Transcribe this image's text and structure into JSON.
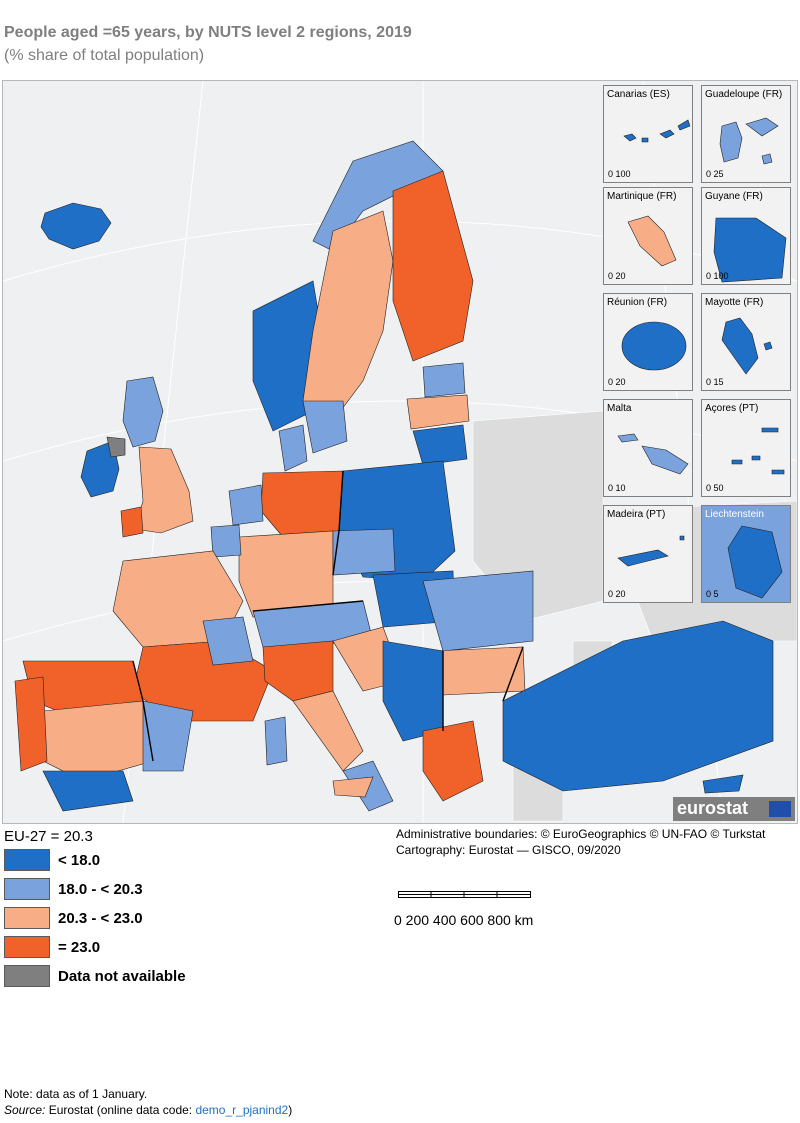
{
  "header": {
    "title": "People aged =65 years, by NUTS level 2 regions, 2019",
    "subtitle": "(% share of total population)"
  },
  "colors": {
    "class1": "#1f6fc7",
    "class2": "#7aa2dd",
    "class3": "#f7ad86",
    "class4": "#f0622a",
    "na": "#7f7f7f",
    "sea": "#eef0f2",
    "land_out": "#dcdcdc"
  },
  "insets": [
    {
      "label": "Canarias (ES)",
      "scale": "0  100",
      "fill": "class1"
    },
    {
      "label": "Guadeloupe (FR)",
      "scale": "0    25",
      "fill": "class2"
    },
    {
      "label": "Martinique (FR)",
      "scale": "0    20",
      "fill": "class3"
    },
    {
      "label": "Guyane (FR)",
      "scale": "0  100",
      "fill": "class1"
    },
    {
      "label": "Réunion (FR)",
      "scale": "0    20",
      "fill": "class1"
    },
    {
      "label": "Mayotte (FR)",
      "scale": "0     15",
      "fill": "class1"
    },
    {
      "label": "Malta",
      "scale": "0    10",
      "fill": "class2"
    },
    {
      "label": "Açores (PT)",
      "scale": "0    50",
      "fill": "class1"
    },
    {
      "label": "Madeira (PT)",
      "scale": "0    20",
      "fill": "class1"
    },
    {
      "label": "Liechtenstein",
      "scale": "0    5",
      "fill": "class1"
    }
  ],
  "logo": {
    "text": "eurostat"
  },
  "eu_average": "EU-27 = 20.3",
  "legend": [
    {
      "label": "< 18.0",
      "color": "class1"
    },
    {
      "label": "18.0 - < 20.3",
      "color": "class2"
    },
    {
      "label": "20.3 - < 23.0",
      "color": "class3"
    },
    {
      "label": "= 23.0",
      "color": "class4"
    },
    {
      "label": "Data not available",
      "color": "na"
    }
  ],
  "credits": {
    "line1": "Administrative boundaries: © EuroGeographics © UN-FAO © Turkstat",
    "line2": "Cartography: Eurostat — GISCO, 09/2020"
  },
  "scalebar": {
    "labels": "0   200  400  600  800 km"
  },
  "note": {
    "line1": "Note: data as of 1 January.",
    "source_label": "Source:",
    "source_text": " Eurostat (online data code: ",
    "code": "demo_r_pjanind2",
    "close": ")"
  }
}
